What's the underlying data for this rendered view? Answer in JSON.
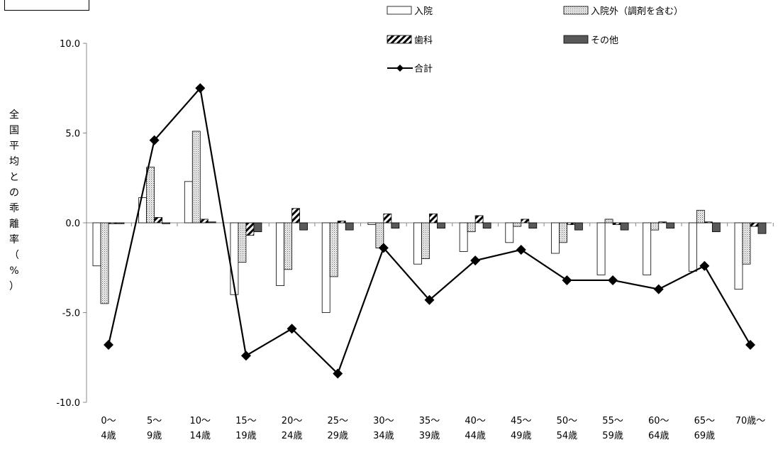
{
  "corner_label": "",
  "subtitle": "",
  "chart_data": {
    "type": "bar",
    "title": "",
    "ylabel": "全国平均との乖離率（%）",
    "xlabel": "",
    "ylim": [
      -10,
      10
    ],
    "yticks": [
      "10.0",
      "5.0",
      "0.0",
      "-5.0",
      "-10.0"
    ],
    "categories": [
      "0〜\n4歳",
      "5〜\n9歳",
      "10〜\n14歳",
      "15〜\n19歳",
      "20〜\n24歳",
      "25〜\n29歳",
      "30〜\n34歳",
      "35〜\n39歳",
      "40〜\n44歳",
      "45〜\n49歳",
      "50〜\n54歳",
      "55〜\n59歳",
      "60〜\n64歳",
      "65〜\n69歳",
      "70歳〜"
    ],
    "series": [
      {
        "name": "入院",
        "kind": "bar",
        "fill": "white",
        "values": [
          -2.4,
          1.4,
          2.3,
          -4.0,
          -3.5,
          -5.0,
          -0.1,
          -2.3,
          -1.6,
          -1.1,
          -1.7,
          -2.9,
          -2.9,
          -2.7,
          -3.7
        ]
      },
      {
        "name": "入院外（調剤を含む）",
        "kind": "bar",
        "fill": "dots",
        "values": [
          -4.5,
          3.1,
          5.1,
          -2.2,
          -2.6,
          -3.0,
          -1.4,
          -2.0,
          -0.5,
          -0.2,
          -1.1,
          0.2,
          -0.4,
          0.7,
          -2.3
        ]
      },
      {
        "name": "歯科",
        "kind": "bar",
        "fill": "hatch",
        "values": [
          -0.05,
          0.3,
          0.2,
          -0.7,
          0.8,
          0.1,
          0.5,
          0.5,
          0.4,
          0.2,
          -0.1,
          -0.1,
          0.05,
          0.05,
          -0.2
        ]
      },
      {
        "name": "その他",
        "kind": "bar",
        "fill": "solid",
        "values": [
          -0.05,
          -0.05,
          0.05,
          -0.5,
          -0.4,
          -0.4,
          -0.3,
          -0.3,
          -0.3,
          -0.3,
          -0.4,
          -0.4,
          -0.3,
          -0.5,
          -0.6
        ]
      },
      {
        "name": "合計",
        "kind": "line",
        "values": [
          -6.8,
          4.6,
          7.5,
          -7.4,
          -5.9,
          -8.4,
          -1.4,
          -4.3,
          -2.1,
          -1.5,
          -3.2,
          -3.2,
          -3.7,
          -2.4,
          -6.8
        ]
      }
    ],
    "legend_position": "top-right",
    "grid": false
  }
}
